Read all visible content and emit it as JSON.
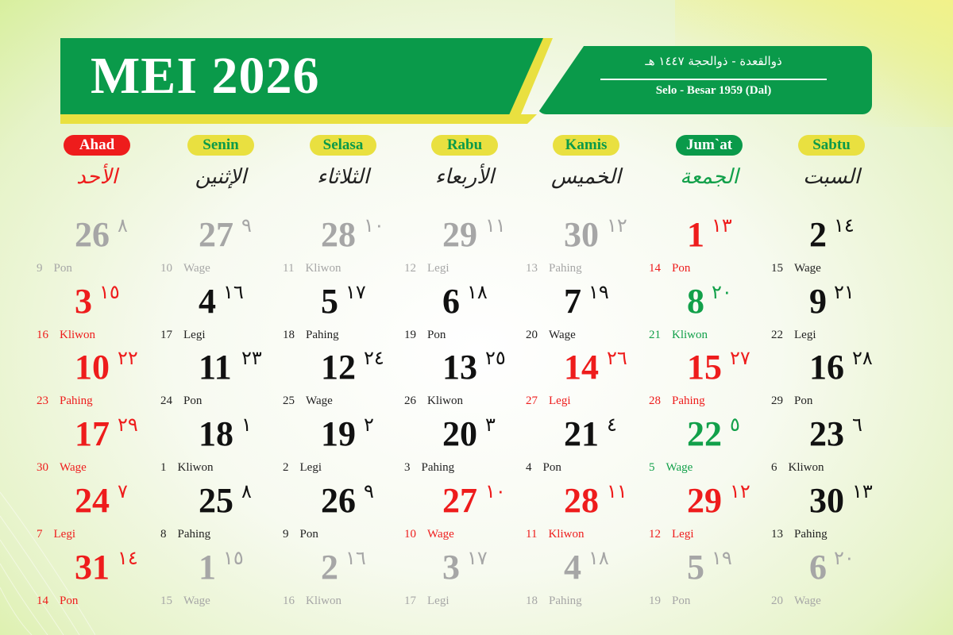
{
  "header": {
    "title": "MEI 2026",
    "hijri": "ذوالقعدة - ذوالحجة ١٤٤٧ هـ",
    "javanese": "Selo - Besar  1959 (Dal)"
  },
  "colors": {
    "green": "#0a9a4a",
    "yellow": "#e9e040",
    "red": "#ee1c1c",
    "gray": "#a6a6a6",
    "black": "#111111",
    "friday": "#12a04a"
  },
  "days": [
    {
      "label": "Ahad",
      "arabic": "الأحد",
      "style": "red"
    },
    {
      "label": "Senin",
      "arabic": "الإثنين",
      "style": "yellow"
    },
    {
      "label": "Selasa",
      "arabic": "الثلاثاء",
      "style": "yellow"
    },
    {
      "label": "Rabu",
      "arabic": "الأربعاء",
      "style": "yellow"
    },
    {
      "label": "Kamis",
      "arabic": "الخميس",
      "style": "yellow"
    },
    {
      "label": "Jum`at",
      "arabic": "الجمعة",
      "style": "green"
    },
    {
      "label": "Sabtu",
      "arabic": "السبت",
      "style": "yellow"
    }
  ],
  "weeks": [
    [
      {
        "d": "26",
        "h": "٨",
        "j": "9",
        "p": "Pon",
        "c": "gray"
      },
      {
        "d": "27",
        "h": "٩",
        "j": "10",
        "p": "Wage",
        "c": "gray"
      },
      {
        "d": "28",
        "h": "١٠",
        "j": "11",
        "p": "Kliwon",
        "c": "gray"
      },
      {
        "d": "29",
        "h": "١١",
        "j": "12",
        "p": "Legi",
        "c": "gray"
      },
      {
        "d": "30",
        "h": "١٢",
        "j": "13",
        "p": "Pahing",
        "c": "gray"
      },
      {
        "d": "1",
        "h": "١٣",
        "j": "14",
        "p": "Pon",
        "c": "red"
      },
      {
        "d": "2",
        "h": "١٤",
        "j": "15",
        "p": "Wage",
        "c": "black"
      }
    ],
    [
      {
        "d": "3",
        "h": "١٥",
        "j": "16",
        "p": "Kliwon",
        "c": "red"
      },
      {
        "d": "4",
        "h": "١٦",
        "j": "17",
        "p": "Legi",
        "c": "black"
      },
      {
        "d": "5",
        "h": "١٧",
        "j": "18",
        "p": "Pahing",
        "c": "black"
      },
      {
        "d": "6",
        "h": "١٨",
        "j": "19",
        "p": "Pon",
        "c": "black"
      },
      {
        "d": "7",
        "h": "١٩",
        "j": "20",
        "p": "Wage",
        "c": "black"
      },
      {
        "d": "8",
        "h": "٢٠",
        "j": "21",
        "p": "Kliwon",
        "c": "friday"
      },
      {
        "d": "9",
        "h": "٢١",
        "j": "22",
        "p": "Legi",
        "c": "black"
      }
    ],
    [
      {
        "d": "10",
        "h": "٢٢",
        "j": "23",
        "p": "Pahing",
        "c": "red"
      },
      {
        "d": "11",
        "h": "٢٣",
        "j": "24",
        "p": "Pon",
        "c": "black"
      },
      {
        "d": "12",
        "h": "٢٤",
        "j": "25",
        "p": "Wage",
        "c": "black"
      },
      {
        "d": "13",
        "h": "٢٥",
        "j": "26",
        "p": "Kliwon",
        "c": "black"
      },
      {
        "d": "14",
        "h": "٢٦",
        "j": "27",
        "p": "Legi",
        "c": "red"
      },
      {
        "d": "15",
        "h": "٢٧",
        "j": "28",
        "p": "Pahing",
        "c": "red"
      },
      {
        "d": "16",
        "h": "٢٨",
        "j": "29",
        "p": "Pon",
        "c": "black"
      }
    ],
    [
      {
        "d": "17",
        "h": "٢٩",
        "j": "30",
        "p": "Wage",
        "c": "red"
      },
      {
        "d": "18",
        "h": "١",
        "j": "1",
        "p": "Kliwon",
        "c": "black"
      },
      {
        "d": "19",
        "h": "٢",
        "j": "2",
        "p": "Legi",
        "c": "black"
      },
      {
        "d": "20",
        "h": "٣",
        "j": "3",
        "p": "Pahing",
        "c": "black"
      },
      {
        "d": "21",
        "h": "٤",
        "j": "4",
        "p": "Pon",
        "c": "black"
      },
      {
        "d": "22",
        "h": "٥",
        "j": "5",
        "p": "Wage",
        "c": "friday"
      },
      {
        "d": "23",
        "h": "٦",
        "j": "6",
        "p": "Kliwon",
        "c": "black"
      }
    ],
    [
      {
        "d": "24",
        "h": "٧",
        "j": "7",
        "p": "Legi",
        "c": "red"
      },
      {
        "d": "25",
        "h": "٨",
        "j": "8",
        "p": "Pahing",
        "c": "black"
      },
      {
        "d": "26",
        "h": "٩",
        "j": "9",
        "p": "Pon",
        "c": "black"
      },
      {
        "d": "27",
        "h": "١٠",
        "j": "10",
        "p": "Wage",
        "c": "red"
      },
      {
        "d": "28",
        "h": "١١",
        "j": "11",
        "p": "Kliwon",
        "c": "red"
      },
      {
        "d": "29",
        "h": "١٢",
        "j": "12",
        "p": "Legi",
        "c": "red"
      },
      {
        "d": "30",
        "h": "١٣",
        "j": "13",
        "p": "Pahing",
        "c": "black"
      }
    ],
    [
      {
        "d": "31",
        "h": "١٤",
        "j": "14",
        "p": "Pon",
        "c": "red"
      },
      {
        "d": "1",
        "h": "١٥",
        "j": "15",
        "p": "Wage",
        "c": "gray"
      },
      {
        "d": "2",
        "h": "١٦",
        "j": "16",
        "p": "Kliwon",
        "c": "gray"
      },
      {
        "d": "3",
        "h": "١٧",
        "j": "17",
        "p": "Legi",
        "c": "gray"
      },
      {
        "d": "4",
        "h": "١٨",
        "j": "18",
        "p": "Pahing",
        "c": "gray"
      },
      {
        "d": "5",
        "h": "١٩",
        "j": "19",
        "p": "Pon",
        "c": "gray"
      },
      {
        "d": "6",
        "h": "٢٠",
        "j": "20",
        "p": "Wage",
        "c": "gray"
      }
    ]
  ]
}
